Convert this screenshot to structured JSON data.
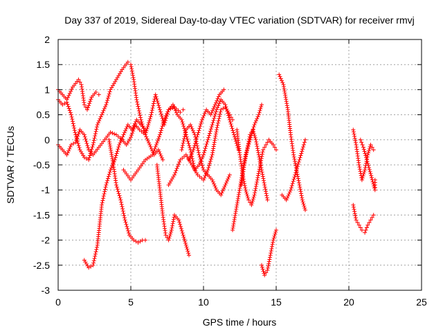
{
  "chart_data": {
    "type": "scatter",
    "title": "Day 337 of 2019, Sidereal Day-to-day VTEC variation (SDTVAR) for receiver rmvj",
    "xlabel": "GPS time / hours",
    "ylabel": "SDTVAR / TECUs",
    "xlim": [
      0,
      25
    ],
    "ylim": [
      -3,
      2
    ],
    "xticks": [
      0,
      5,
      10,
      15,
      20,
      25
    ],
    "yticks": [
      -3,
      -2.5,
      -2,
      -1.5,
      -1,
      -0.5,
      0,
      0.5,
      1,
      1.5,
      2
    ],
    "ytick_labels": [
      "-3",
      "-2.5",
      "-2",
      "-1.5",
      "-1",
      "-0.5",
      "0",
      "0.5",
      "1",
      "1.5",
      "2"
    ],
    "grid": true,
    "marker": "+",
    "color": "#ff0000",
    "series": [
      {
        "name": "s1",
        "points": [
          [
            0,
            1.0
          ],
          [
            0.3,
            0.9
          ],
          [
            0.6,
            0.8
          ],
          [
            1.0,
            1.05
          ],
          [
            1.4,
            1.2
          ],
          [
            1.6,
            1.1
          ],
          [
            1.8,
            0.7
          ],
          [
            2.0,
            0.6
          ],
          [
            2.3,
            0.85
          ],
          [
            2.6,
            0.95
          ],
          [
            2.8,
            0.9
          ]
        ]
      },
      {
        "name": "s2",
        "points": [
          [
            0,
            0.8
          ],
          [
            0.3,
            0.7
          ],
          [
            0.6,
            0.75
          ],
          [
            0.9,
            0.5
          ],
          [
            1.2,
            0.1
          ],
          [
            1.5,
            -0.2
          ],
          [
            1.8,
            -0.35
          ],
          [
            2.1,
            -0.4
          ],
          [
            2.4,
            -0.1
          ],
          [
            2.7,
            0.3
          ],
          [
            3.0,
            0.5
          ],
          [
            3.3,
            0.7
          ],
          [
            3.6,
            1.0
          ],
          [
            4.0,
            1.2
          ],
          [
            4.4,
            1.4
          ],
          [
            4.8,
            1.55
          ],
          [
            5.0,
            1.5
          ],
          [
            5.2,
            1.2
          ],
          [
            5.4,
            0.8
          ],
          [
            5.7,
            0.4
          ],
          [
            6.0,
            0.1
          ],
          [
            6.4,
            0.5
          ],
          [
            6.7,
            0.9
          ],
          [
            7.0,
            0.6
          ],
          [
            7.3,
            0.3
          ],
          [
            7.6,
            0.6
          ],
          [
            8.0,
            0.65
          ],
          [
            8.4,
            0.55
          ],
          [
            8.6,
            0.6
          ]
        ]
      },
      {
        "name": "s3",
        "points": [
          [
            0,
            -0.1
          ],
          [
            0.3,
            -0.2
          ],
          [
            0.6,
            -0.3
          ],
          [
            0.9,
            -0.1
          ],
          [
            1.2,
            -0.05
          ],
          [
            1.5,
            0.2
          ],
          [
            1.8,
            0.1
          ],
          [
            2.1,
            -0.2
          ],
          [
            2.4,
            -0.3
          ],
          [
            2.8,
            -0.15
          ],
          [
            3.2,
            0.0
          ],
          [
            3.6,
            0.15
          ],
          [
            4.0,
            0.1
          ],
          [
            4.4,
            0.0
          ],
          [
            4.7,
            -0.1
          ],
          [
            5.0,
            0.05
          ],
          [
            5.3,
            0.3
          ],
          [
            5.6,
            0.2
          ],
          [
            6.0,
            0.1
          ],
          [
            6.3,
            -0.1
          ],
          [
            6.6,
            -0.3
          ],
          [
            6.9,
            -0.2
          ],
          [
            7.2,
            -0.4
          ]
        ]
      },
      {
        "name": "s4",
        "points": [
          [
            1.8,
            -2.4
          ],
          [
            2.1,
            -2.55
          ],
          [
            2.4,
            -2.5
          ],
          [
            2.7,
            -2.1
          ],
          [
            3.0,
            -1.3
          ],
          [
            3.3,
            -0.9
          ],
          [
            3.6,
            -0.6
          ],
          [
            3.9,
            -0.4
          ],
          [
            4.2,
            -0.1
          ],
          [
            4.5,
            0.1
          ],
          [
            4.8,
            0.3
          ],
          [
            5.1,
            0.2
          ],
          [
            5.4,
            0.4
          ],
          [
            5.7,
            0.3
          ],
          [
            6.0,
            0.2
          ]
        ]
      },
      {
        "name": "s5",
        "points": [
          [
            3.5,
            0.0
          ],
          [
            3.8,
            -0.5
          ],
          [
            4.0,
            -0.9
          ],
          [
            4.3,
            -1.2
          ],
          [
            4.6,
            -1.6
          ],
          [
            4.9,
            -1.9
          ],
          [
            5.2,
            -2.0
          ],
          [
            5.5,
            -2.05
          ],
          [
            5.8,
            -2.0
          ],
          [
            6.0,
            -2.0
          ]
        ]
      },
      {
        "name": "s6",
        "points": [
          [
            4.5,
            -0.6
          ],
          [
            5.0,
            -0.8
          ],
          [
            5.5,
            -0.6
          ],
          [
            6.0,
            -0.4
          ],
          [
            6.5,
            -0.3
          ],
          [
            7.0,
            0.1
          ],
          [
            7.3,
            0.4
          ],
          [
            7.6,
            0.6
          ],
          [
            7.9,
            0.7
          ],
          [
            8.2,
            0.5
          ],
          [
            8.5,
            0.4
          ],
          [
            8.8,
            0.1
          ],
          [
            9.1,
            -0.2
          ],
          [
            9.4,
            -0.6
          ],
          [
            9.7,
            -0.5
          ],
          [
            10.0,
            -0.3
          ],
          [
            10.3,
            0.0
          ],
          [
            10.6,
            0.3
          ],
          [
            10.9,
            0.6
          ],
          [
            11.2,
            0.8
          ],
          [
            11.5,
            0.7
          ],
          [
            11.8,
            0.4
          ],
          [
            12.1,
            0.1
          ],
          [
            12.4,
            -0.2
          ]
        ]
      },
      {
        "name": "s7",
        "points": [
          [
            6.8,
            -0.5
          ],
          [
            7.0,
            -1.0
          ],
          [
            7.2,
            -1.5
          ],
          [
            7.4,
            -1.9
          ],
          [
            7.6,
            -2.0
          ],
          [
            7.8,
            -1.8
          ],
          [
            8.0,
            -1.5
          ],
          [
            8.3,
            -1.6
          ],
          [
            8.6,
            -1.9
          ],
          [
            8.8,
            -2.1
          ],
          [
            9.0,
            -2.3
          ]
        ]
      },
      {
        "name": "s8",
        "points": [
          [
            7.6,
            -0.9
          ],
          [
            8.0,
            -0.7
          ],
          [
            8.4,
            -0.4
          ],
          [
            8.8,
            -0.3
          ],
          [
            9.2,
            -0.5
          ],
          [
            9.6,
            -0.7
          ],
          [
            10.0,
            -0.8
          ],
          [
            10.3,
            -0.6
          ],
          [
            10.6,
            -0.3
          ],
          [
            10.9,
            0.2
          ],
          [
            11.2,
            0.6
          ],
          [
            11.5,
            0.65
          ],
          [
            11.8,
            0.5
          ],
          [
            12.0,
            0.4
          ]
        ]
      },
      {
        "name": "s9",
        "points": [
          [
            8.5,
            -0.2
          ],
          [
            8.8,
            0.2
          ],
          [
            9.1,
            0.3
          ],
          [
            9.4,
            0.1
          ],
          [
            9.7,
            -0.3
          ],
          [
            10.0,
            -0.6
          ],
          [
            10.3,
            -0.7
          ],
          [
            10.6,
            -0.8
          ],
          [
            10.9,
            -1.0
          ],
          [
            11.2,
            -1.1
          ],
          [
            11.5,
            -0.9
          ],
          [
            11.8,
            -0.7
          ]
        ]
      },
      {
        "name": "s10",
        "points": [
          [
            9.0,
            -0.4
          ],
          [
            9.3,
            -0.2
          ],
          [
            9.6,
            0.1
          ],
          [
            9.9,
            0.4
          ],
          [
            10.2,
            0.6
          ],
          [
            10.5,
            0.5
          ],
          [
            10.8,
            0.7
          ],
          [
            11.1,
            0.9
          ],
          [
            11.4,
            1.0
          ]
        ]
      },
      {
        "name": "s11",
        "points": [
          [
            12.3,
            0.2
          ],
          [
            12.5,
            -0.3
          ],
          [
            12.7,
            -0.7
          ],
          [
            12.9,
            -1.0
          ],
          [
            13.1,
            -1.2
          ],
          [
            13.3,
            -1.3
          ],
          [
            13.5,
            -1.1
          ],
          [
            13.7,
            -0.8
          ],
          [
            13.9,
            -0.5
          ],
          [
            14.1,
            -0.2
          ],
          [
            14.3,
            -0.1
          ],
          [
            14.5,
            0.0
          ],
          [
            14.8,
            -0.1
          ],
          [
            15.0,
            -0.2
          ]
        ]
      },
      {
        "name": "s12",
        "points": [
          [
            12.6,
            -0.9
          ],
          [
            12.8,
            -0.5
          ],
          [
            13.0,
            -0.2
          ],
          [
            13.2,
            0.1
          ],
          [
            13.4,
            0.2
          ],
          [
            13.6,
            0.0
          ],
          [
            13.8,
            -0.3
          ],
          [
            14.0,
            -0.6
          ],
          [
            14.2,
            -0.9
          ],
          [
            14.4,
            -1.2
          ]
        ]
      },
      {
        "name": "s13",
        "points": [
          [
            12.0,
            -1.8
          ],
          [
            12.3,
            -1.3
          ],
          [
            12.6,
            -0.8
          ],
          [
            12.9,
            -0.3
          ],
          [
            13.2,
            0.0
          ],
          [
            13.5,
            0.3
          ],
          [
            13.8,
            0.5
          ],
          [
            14.0,
            0.7
          ]
        ]
      },
      {
        "name": "s14",
        "points": [
          [
            14.0,
            -2.5
          ],
          [
            14.2,
            -2.7
          ],
          [
            14.4,
            -2.6
          ],
          [
            14.6,
            -2.3
          ],
          [
            14.8,
            -2.0
          ],
          [
            15.0,
            -1.8
          ]
        ]
      },
      {
        "name": "s15",
        "points": [
          [
            15.2,
            1.3
          ],
          [
            15.5,
            1.1
          ],
          [
            15.8,
            0.6
          ],
          [
            16.0,
            0.1
          ],
          [
            16.2,
            -0.3
          ],
          [
            16.4,
            -0.6
          ],
          [
            16.6,
            -0.9
          ],
          [
            16.8,
            -1.2
          ],
          [
            17.0,
            -1.4
          ]
        ]
      },
      {
        "name": "s16",
        "points": [
          [
            15.4,
            -1.1
          ],
          [
            15.7,
            -1.2
          ],
          [
            16.0,
            -1.0
          ],
          [
            16.3,
            -0.7
          ],
          [
            16.6,
            -0.4
          ],
          [
            16.9,
            -0.1
          ],
          [
            17.0,
            0.0
          ]
        ]
      },
      {
        "name": "s17",
        "points": [
          [
            20.3,
            0.2
          ],
          [
            20.5,
            -0.1
          ],
          [
            20.7,
            -0.5
          ],
          [
            20.9,
            -0.8
          ],
          [
            21.1,
            -0.6
          ],
          [
            21.3,
            -0.3
          ],
          [
            21.5,
            -0.1
          ],
          [
            21.7,
            -0.2
          ]
        ]
      },
      {
        "name": "s18",
        "points": [
          [
            20.3,
            -1.3
          ],
          [
            20.5,
            -1.6
          ],
          [
            20.7,
            -1.7
          ],
          [
            20.9,
            -1.8
          ],
          [
            21.1,
            -1.85
          ],
          [
            21.3,
            -1.7
          ],
          [
            21.5,
            -1.6
          ],
          [
            21.7,
            -1.5
          ]
        ]
      },
      {
        "name": "s19",
        "points": [
          [
            21.8,
            -0.8
          ],
          [
            21.8,
            -1.0
          ],
          [
            21.0,
            -0.15
          ],
          [
            20.8,
            0.0
          ]
        ]
      }
    ]
  }
}
